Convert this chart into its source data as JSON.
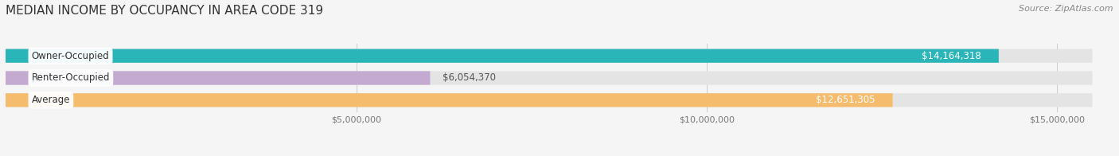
{
  "title": "MEDIAN INCOME BY OCCUPANCY IN AREA CODE 319",
  "source": "Source: ZipAtlas.com",
  "categories": [
    "Owner-Occupied",
    "Renter-Occupied",
    "Average"
  ],
  "values": [
    14164318,
    6054370,
    12651305
  ],
  "bar_colors": [
    "#2ab5b8",
    "#c4aad0",
    "#f5bc6e"
  ],
  "value_labels": [
    "$14,164,318",
    "$6,054,370",
    "$12,651,305"
  ],
  "value_label_inside": [
    true,
    false,
    true
  ],
  "value_label_colors_inside": [
    "#ffffff",
    "#555555",
    "#ffffff"
  ],
  "xlim_max": 15800000,
  "bar_max": 15500000,
  "xticks": [
    5000000,
    10000000,
    15000000
  ],
  "xtick_labels": [
    "$5,000,000",
    "$10,000,000",
    "$15,000,000"
  ],
  "background_color": "#f5f5f5",
  "bar_bg_color": "#e4e4e4",
  "title_fontsize": 11,
  "source_fontsize": 8,
  "bar_height": 0.62,
  "cat_label_fontsize": 8.5,
  "val_label_fontsize": 8.5
}
